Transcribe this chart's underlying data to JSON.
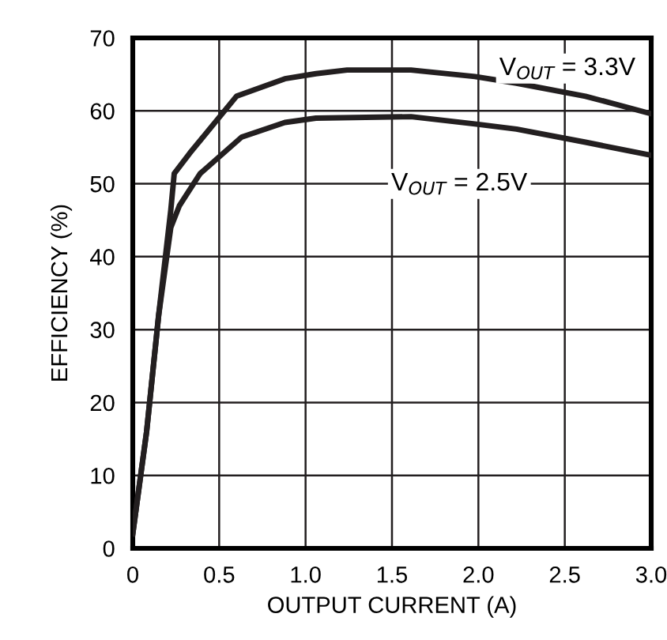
{
  "chart_data": {
    "type": "line",
    "xlabel": "OUTPUT CURRENT (A)",
    "ylabel": "EFFICIENCY (%)",
    "xlim": [
      0,
      3.0
    ],
    "ylim": [
      0,
      70
    ],
    "xticks": [
      0,
      0.5,
      {
        "value": 1.0,
        "label": "1.0"
      },
      1.5,
      {
        "value": 2.0,
        "label": "2.0"
      },
      2.5,
      {
        "value": 3.0,
        "label": "3.0"
      }
    ],
    "yticks": [
      0,
      10,
      20,
      30,
      40,
      50,
      60,
      70
    ],
    "grid": true,
    "legend": false,
    "marker": "none",
    "line_style": "solid",
    "series": [
      {
        "name": "V$_{OUT}$ = 3.3V",
        "color": "#231f20",
        "x": [
          0,
          0.08,
          0.15,
          0.22,
          0.24,
          0.33,
          0.6,
          0.88,
          1.06,
          1.24,
          1.61,
          1.98,
          2.22,
          2.62,
          3.0
        ],
        "values": [
          2,
          16,
          32,
          46.4,
          51.4,
          54.2,
          62,
          64.4,
          65.1,
          65.6,
          65.6,
          64.7,
          63.8,
          62,
          59.6
        ]
      },
      {
        "name": "V$_{OUT}$ = 2.5V",
        "color": "#231f20",
        "x": [
          0,
          0.08,
          0.15,
          0.22,
          0.27,
          0.39,
          0.63,
          0.88,
          1.06,
          1.61,
          1.98,
          2.22,
          2.62,
          3.0
        ],
        "values": [
          2,
          16,
          32,
          44,
          47,
          51.4,
          56.4,
          58.4,
          59,
          59.2,
          58.2,
          57.5,
          55.7,
          53.9
        ]
      }
    ]
  }
}
